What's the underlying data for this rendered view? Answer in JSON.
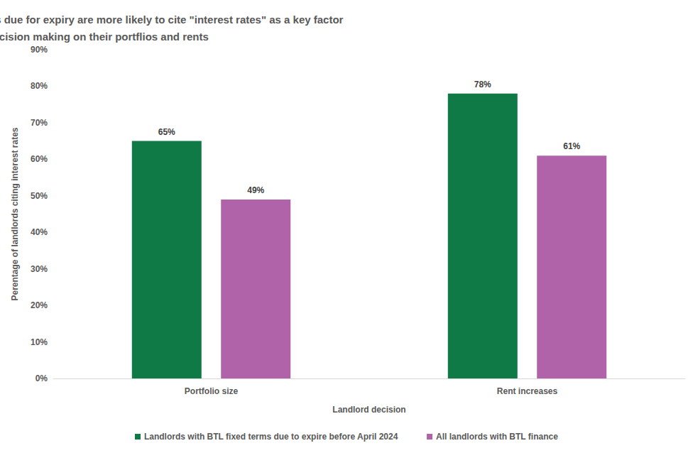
{
  "chart_data": {
    "type": "bar",
    "title": "Landlords with BTL fixed term deals due for expiry are more likely to cite \"interest rates\" as a key factor in the decision making on their portflios and rents",
    "x_label": "Landlord decision",
    "y_label": "Perentage of landlords citing interest rates",
    "categories": [
      "Portfolio size",
      "Rent increases"
    ],
    "series": [
      {
        "name": "Landlords with BTL fixed terms due to expire before April 2024",
        "color": "#107a47",
        "values": [
          65,
          78
        ],
        "value_labels": [
          "65%",
          "78%"
        ]
      },
      {
        "name": "All landlords with BTL finance",
        "color": "#b063a9",
        "values": [
          49,
          61
        ],
        "value_labels": [
          "49%",
          "61%"
        ]
      }
    ],
    "ylim": [
      0,
      90
    ],
    "yticks": [
      {
        "value": 0,
        "label": "0%"
      },
      {
        "value": 10,
        "label": "10%"
      },
      {
        "value": 20,
        "label": "20%"
      },
      {
        "value": 30,
        "label": "30%"
      },
      {
        "value": 40,
        "label": "40%"
      },
      {
        "value": 50,
        "label": "50%"
      },
      {
        "value": 60,
        "label": "60%"
      },
      {
        "value": 70,
        "label": "70%"
      },
      {
        "value": 80,
        "label": "80%"
      },
      {
        "value": 90,
        "label": "90%"
      }
    ],
    "grid": false,
    "legend": "bottom",
    "data_labels": true
  }
}
